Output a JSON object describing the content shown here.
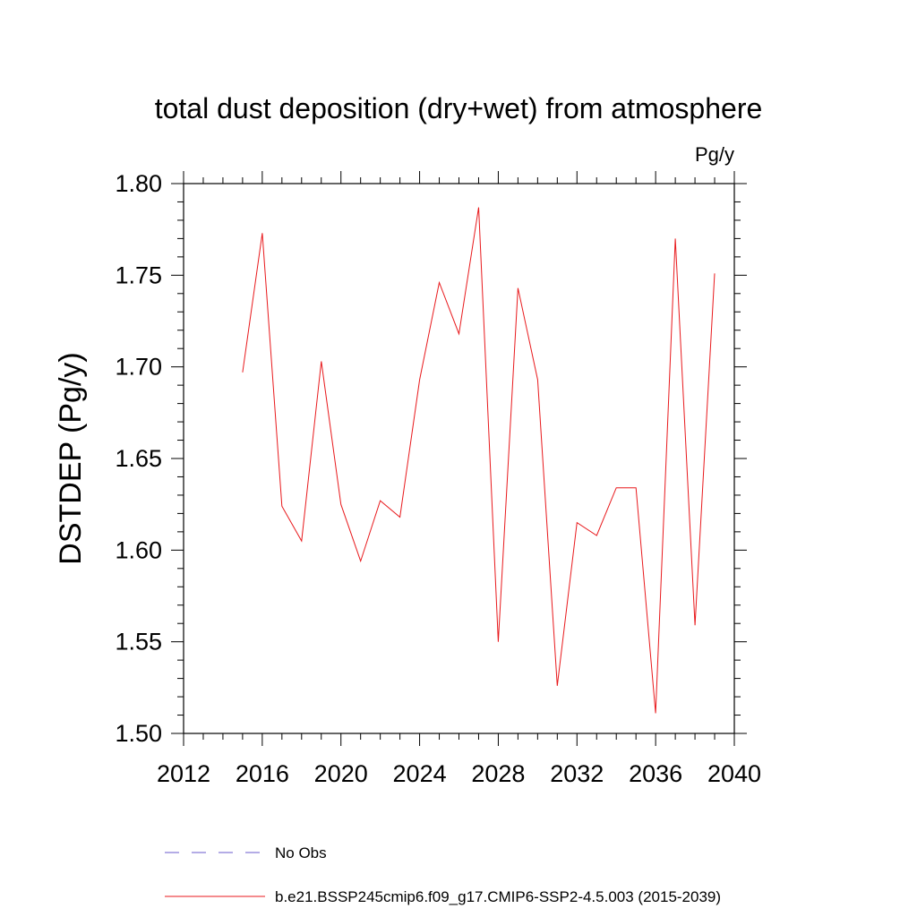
{
  "chart_data": {
    "type": "line",
    "title": "total dust deposition (dry+wet) from atmosphere",
    "units_label": "Pg/y",
    "ylabel": "DSTDEP  (Pg/y)",
    "xlabel": "",
    "xlim": [
      2012,
      2040
    ],
    "ylim": [
      1.5,
      1.8
    ],
    "x_ticks": [
      2012,
      2016,
      2020,
      2024,
      2028,
      2032,
      2036,
      2040
    ],
    "x_tick_labels": [
      "2012",
      "2016",
      "2020",
      "2024",
      "2028",
      "2032",
      "2036",
      "2040"
    ],
    "y_ticks": [
      1.5,
      1.55,
      1.6,
      1.65,
      1.7,
      1.75,
      1.8
    ],
    "y_tick_labels": [
      "1.50",
      "1.55",
      "1.60",
      "1.65",
      "1.70",
      "1.75",
      "1.80"
    ],
    "grid": false,
    "legend_position": "bottom",
    "series": [
      {
        "name": "b.e21.BSSP245cmip6.f09_g17.CMIP6-SSP2-4.5.003 (2015-2039)",
        "color": "#e8191c",
        "style": "solid",
        "x": [
          2015,
          2016,
          2017,
          2018,
          2019,
          2020,
          2021,
          2022,
          2023,
          2024,
          2025,
          2026,
          2027,
          2028,
          2029,
          2030,
          2031,
          2032,
          2033,
          2034,
          2035,
          2036,
          2037,
          2038,
          2039
        ],
        "values": [
          1.697,
          1.773,
          1.624,
          1.605,
          1.703,
          1.625,
          1.594,
          1.627,
          1.618,
          1.693,
          1.746,
          1.718,
          1.787,
          1.55,
          1.743,
          1.693,
          1.526,
          1.615,
          1.608,
          1.634,
          1.634,
          1.511,
          1.77,
          1.559,
          1.751
        ]
      },
      {
        "name": "No Obs",
        "color": "#6a5acd",
        "style": "dashed",
        "x": [],
        "values": []
      }
    ]
  }
}
